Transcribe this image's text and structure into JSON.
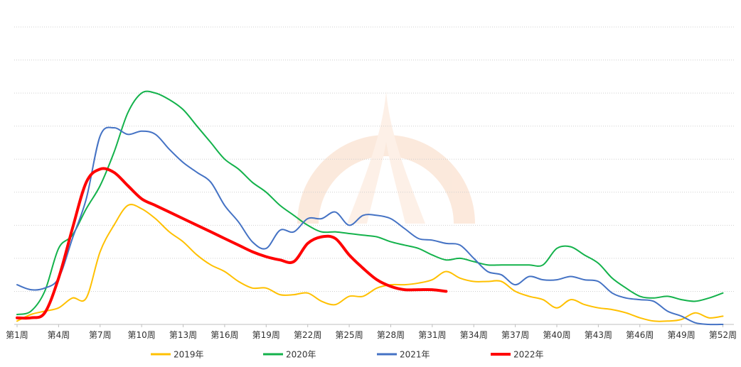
{
  "chart_data": {
    "type": "line",
    "title": "",
    "xlabel": "",
    "ylabel": "",
    "grid": true,
    "legend_position": "bottom",
    "ylim": [
      0,
      9
    ],
    "x_range": [
      1,
      53
    ],
    "tick_labels": [
      {
        "week": 1,
        "label": "第1周"
      },
      {
        "week": 4,
        "label": "第4周"
      },
      {
        "week": 7,
        "label": "第7周"
      },
      {
        "week": 10,
        "label": "第10周"
      },
      {
        "week": 13,
        "label": "第13周"
      },
      {
        "week": 16,
        "label": "第16周"
      },
      {
        "week": 19,
        "label": "第19周"
      },
      {
        "week": 22,
        "label": "第22周"
      },
      {
        "week": 25,
        "label": "第25周"
      },
      {
        "week": 28,
        "label": "第28周"
      },
      {
        "week": 31,
        "label": "第31周"
      },
      {
        "week": 34,
        "label": "第34周"
      },
      {
        "week": 37,
        "label": "第37周"
      },
      {
        "week": 40,
        "label": "第40周"
      },
      {
        "week": 43,
        "label": "第43周"
      },
      {
        "week": 46,
        "label": "第46周"
      },
      {
        "week": 49,
        "label": "第49周"
      },
      {
        "week": 52,
        "label": "第52周"
      }
    ],
    "series": [
      {
        "name": "2019年",
        "color": "#ffc000",
        "width": 2,
        "x": [
          1,
          2,
          3,
          4,
          5,
          6,
          7,
          8,
          9,
          10,
          11,
          12,
          13,
          14,
          15,
          16,
          17,
          18,
          19,
          20,
          21,
          22,
          23,
          24,
          25,
          26,
          27,
          28,
          29,
          30,
          31,
          32,
          33,
          34,
          35,
          36,
          37,
          38,
          39,
          40,
          41,
          42,
          43,
          44,
          45,
          46,
          47,
          48,
          49,
          50,
          51,
          52
        ],
        "y": [
          0.1,
          0.3,
          0.4,
          0.5,
          0.8,
          0.8,
          2.2,
          3.0,
          3.6,
          3.5,
          3.2,
          2.8,
          2.5,
          2.1,
          1.8,
          1.6,
          1.3,
          1.1,
          1.1,
          0.9,
          0.9,
          0.95,
          0.7,
          0.6,
          0.85,
          0.85,
          1.1,
          1.2,
          1.2,
          1.25,
          1.35,
          1.6,
          1.4,
          1.3,
          1.3,
          1.3,
          1.0,
          0.85,
          0.75,
          0.5,
          0.75,
          0.6,
          0.5,
          0.45,
          0.35,
          0.2,
          0.1,
          0.1,
          0.15,
          0.35,
          0.2,
          0.25
        ]
      },
      {
        "name": "2020年",
        "color": "#13b24b",
        "width": 2,
        "x": [
          1,
          2,
          3,
          4,
          5,
          6,
          7,
          8,
          9,
          10,
          11,
          12,
          13,
          14,
          15,
          16,
          17,
          18,
          19,
          20,
          21,
          22,
          23,
          24,
          25,
          26,
          27,
          28,
          29,
          30,
          31,
          32,
          33,
          34,
          35,
          36,
          37,
          38,
          39,
          40,
          41,
          42,
          43,
          44,
          45,
          46,
          47,
          48,
          49,
          50,
          51,
          52
        ],
        "y": [
          0.3,
          0.4,
          1.0,
          2.3,
          2.7,
          3.5,
          4.2,
          5.2,
          6.4,
          7.0,
          7.0,
          6.8,
          6.5,
          6.0,
          5.5,
          5.0,
          4.7,
          4.3,
          4.0,
          3.6,
          3.3,
          3.0,
          2.8,
          2.8,
          2.75,
          2.7,
          2.65,
          2.5,
          2.4,
          2.3,
          2.1,
          1.95,
          2.0,
          1.9,
          1.8,
          1.8,
          1.8,
          1.8,
          1.8,
          2.3,
          2.35,
          2.1,
          1.85,
          1.4,
          1.1,
          0.85,
          0.8,
          0.85,
          0.75,
          0.7,
          0.8,
          0.95
        ]
      },
      {
        "name": "2021年",
        "color": "#4472c4",
        "width": 2,
        "x": [
          1,
          2,
          3,
          4,
          5,
          6,
          7,
          8,
          9,
          10,
          11,
          12,
          13,
          14,
          15,
          16,
          17,
          18,
          19,
          20,
          21,
          22,
          23,
          24,
          25,
          26,
          27,
          28,
          29,
          30,
          31,
          32,
          33,
          34,
          35,
          36,
          37,
          38,
          39,
          40,
          41,
          42,
          43,
          44,
          45,
          46,
          47,
          48,
          49,
          50,
          51,
          52
        ],
        "y": [
          1.2,
          1.05,
          1.1,
          1.4,
          2.6,
          3.8,
          5.7,
          5.95,
          5.75,
          5.85,
          5.75,
          5.3,
          4.9,
          4.6,
          4.3,
          3.6,
          3.1,
          2.5,
          2.3,
          2.85,
          2.8,
          3.2,
          3.2,
          3.4,
          3.0,
          3.3,
          3.3,
          3.2,
          2.9,
          2.6,
          2.55,
          2.45,
          2.4,
          2.0,
          1.6,
          1.5,
          1.2,
          1.45,
          1.35,
          1.35,
          1.45,
          1.35,
          1.3,
          0.95,
          0.8,
          0.75,
          0.7,
          0.4,
          0.25,
          0.05,
          0.0,
          0.0
        ]
      },
      {
        "name": "2022年",
        "color": "#ff0000",
        "width": 4,
        "x": [
          1,
          2,
          3,
          4,
          5,
          6,
          7,
          8,
          9,
          10,
          11,
          12,
          13,
          14,
          15,
          16,
          17,
          18,
          19,
          20,
          21,
          22,
          23,
          24,
          25,
          26,
          27,
          28,
          29,
          30,
          31,
          32
        ],
        "y": [
          0.2,
          0.2,
          0.35,
          1.4,
          2.9,
          4.3,
          4.7,
          4.6,
          4.2,
          3.8,
          3.6,
          3.4,
          3.2,
          3.0,
          2.8,
          2.6,
          2.4,
          2.2,
          2.05,
          1.95,
          1.9,
          2.45,
          2.65,
          2.6,
          2.1,
          1.7,
          1.35,
          1.15,
          1.05,
          1.05,
          1.05,
          1.0
        ]
      }
    ]
  }
}
